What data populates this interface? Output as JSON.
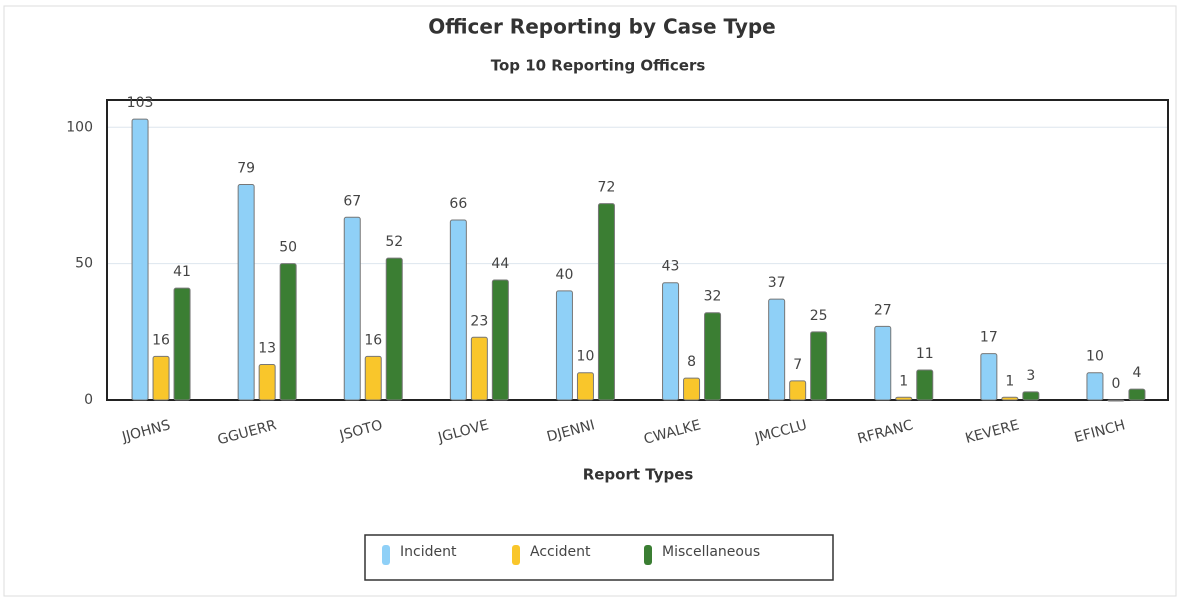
{
  "chart_data": {
    "type": "bar",
    "title": "Officer Reporting by Case Type",
    "subtitle": "Top 10 Reporting Officers",
    "x_label": "Report Types",
    "categories": [
      "JJOHNS",
      "GGUERR",
      "JSOTO",
      "JGLOVE",
      "DJENNI",
      "CWALKE",
      "JMCCLU",
      "RFRANC",
      "KEVERE",
      "EFINCH"
    ],
    "series": [
      {
        "name": "Incident",
        "color": "#8fd0f7",
        "values": [
          103,
          79,
          67,
          66,
          40,
          43,
          37,
          27,
          17,
          10
        ]
      },
      {
        "name": "Accident",
        "color": "#f9c62b",
        "values": [
          16,
          13,
          16,
          23,
          10,
          8,
          7,
          1,
          1,
          0
        ]
      },
      {
        "name": "Miscellaneous",
        "color": "#3b7e33",
        "values": [
          41,
          50,
          52,
          44,
          72,
          32,
          25,
          11,
          3,
          4
        ]
      }
    ],
    "ylim": [
      0,
      110
    ],
    "yticks": [
      0,
      50,
      100
    ],
    "grid": true,
    "legend": "bottom"
  }
}
